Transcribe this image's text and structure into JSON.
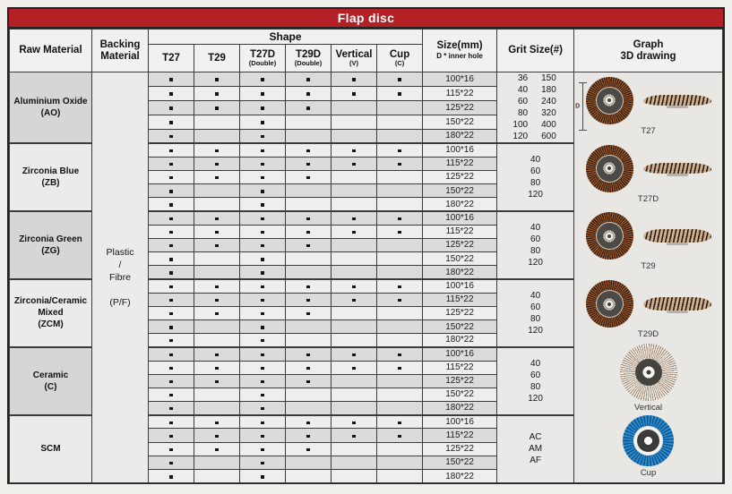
{
  "title": "Flap disc",
  "header": {
    "raw_material": "Raw Material",
    "backing_material": [
      "Backing",
      "Material"
    ],
    "shape": "Shape",
    "shape_columns": [
      {
        "label": "T27",
        "sub": ""
      },
      {
        "label": "T29",
        "sub": ""
      },
      {
        "label": "T27D",
        "sub": "(Double)"
      },
      {
        "label": "T29D",
        "sub": "(Double)"
      },
      {
        "label": "Vertical",
        "sub": "(V)"
      },
      {
        "label": "Cup",
        "sub": "(C)"
      }
    ],
    "size": [
      "Size(mm)",
      "D * inner hole"
    ],
    "grit": "Grit Size(#)",
    "graph": [
      "Graph",
      "3D drawing"
    ]
  },
  "backing_value": [
    "Plastic",
    "/",
    "Fibre",
    "",
    "(P/F)"
  ],
  "sections": [
    {
      "material": [
        "Aluminium Oxide",
        "(AO)"
      ],
      "rows": [
        {
          "size": "100*16",
          "dots": [
            1,
            1,
            1,
            1,
            1,
            1
          ]
        },
        {
          "size": "115*22",
          "dots": [
            1,
            1,
            1,
            1,
            1,
            1
          ]
        },
        {
          "size": "125*22",
          "dots": [
            1,
            1,
            1,
            1,
            0,
            0
          ]
        },
        {
          "size": "150*22",
          "dots": [
            1,
            0,
            1,
            0,
            0,
            0
          ]
        },
        {
          "size": "180*22",
          "dots": [
            1,
            0,
            1,
            0,
            0,
            0
          ]
        }
      ],
      "grit": {
        "columns": 2,
        "values": [
          [
            "36",
            "150"
          ],
          [
            "40",
            "180"
          ],
          [
            "60",
            "240"
          ],
          [
            "80",
            "320"
          ],
          [
            "100",
            "400"
          ],
          [
            "120",
            "600"
          ]
        ]
      }
    },
    {
      "material": [
        "Zirconia Blue",
        "(ZB)"
      ],
      "rows": [
        {
          "size": "100*16",
          "dots": [
            1,
            1,
            1,
            1,
            1,
            1
          ]
        },
        {
          "size": "115*22",
          "dots": [
            1,
            1,
            1,
            1,
            1,
            1
          ]
        },
        {
          "size": "125*22",
          "dots": [
            1,
            1,
            1,
            1,
            0,
            0
          ]
        },
        {
          "size": "150*22",
          "dots": [
            1,
            0,
            1,
            0,
            0,
            0
          ]
        },
        {
          "size": "180*22",
          "dots": [
            1,
            0,
            1,
            0,
            0,
            0
          ]
        }
      ],
      "grit": {
        "columns": 1,
        "values": [
          "40",
          "60",
          "80",
          "120"
        ]
      }
    },
    {
      "material": [
        "Zirconia Green",
        "(ZG)"
      ],
      "rows": [
        {
          "size": "100*16",
          "dots": [
            1,
            1,
            1,
            1,
            1,
            1
          ]
        },
        {
          "size": "115*22",
          "dots": [
            1,
            1,
            1,
            1,
            1,
            1
          ]
        },
        {
          "size": "125*22",
          "dots": [
            1,
            1,
            1,
            1,
            0,
            0
          ]
        },
        {
          "size": "150*22",
          "dots": [
            1,
            0,
            1,
            0,
            0,
            0
          ]
        },
        {
          "size": "180*22",
          "dots": [
            1,
            0,
            1,
            0,
            0,
            0
          ]
        }
      ],
      "grit": {
        "columns": 1,
        "values": [
          "40",
          "60",
          "80",
          "120"
        ]
      }
    },
    {
      "material": [
        "Zirconia/Ceramic",
        "Mixed",
        "(ZCM)"
      ],
      "rows": [
        {
          "size": "100*16",
          "dots": [
            1,
            1,
            1,
            1,
            1,
            1
          ]
        },
        {
          "size": "115*22",
          "dots": [
            1,
            1,
            1,
            1,
            1,
            1
          ]
        },
        {
          "size": "125*22",
          "dots": [
            1,
            1,
            1,
            1,
            0,
            0
          ]
        },
        {
          "size": "150*22",
          "dots": [
            1,
            0,
            1,
            0,
            0,
            0
          ]
        },
        {
          "size": "180*22",
          "dots": [
            1,
            0,
            1,
            0,
            0,
            0
          ]
        }
      ],
      "grit": {
        "columns": 1,
        "values": [
          "40",
          "60",
          "80",
          "120"
        ]
      }
    },
    {
      "material": [
        "Ceramic",
        "(C)"
      ],
      "rows": [
        {
          "size": "100*16",
          "dots": [
            1,
            1,
            1,
            1,
            1,
            1
          ]
        },
        {
          "size": "115*22",
          "dots": [
            1,
            1,
            1,
            1,
            1,
            1
          ]
        },
        {
          "size": "125*22",
          "dots": [
            1,
            1,
            1,
            1,
            0,
            0
          ]
        },
        {
          "size": "150*22",
          "dots": [
            1,
            0,
            1,
            0,
            0,
            0
          ]
        },
        {
          "size": "180*22",
          "dots": [
            1,
            0,
            1,
            0,
            0,
            0
          ]
        }
      ],
      "grit": {
        "columns": 1,
        "values": [
          "40",
          "60",
          "80",
          "120"
        ]
      }
    },
    {
      "material": [
        "SCM"
      ],
      "rows": [
        {
          "size": "100*16",
          "dots": [
            1,
            1,
            1,
            1,
            1,
            1
          ]
        },
        {
          "size": "115*22",
          "dots": [
            1,
            1,
            1,
            1,
            1,
            1
          ]
        },
        {
          "size": "125*22",
          "dots": [
            1,
            1,
            1,
            1,
            0,
            0
          ]
        },
        {
          "size": "150*22",
          "dots": [
            1,
            0,
            1,
            0,
            0,
            0
          ]
        },
        {
          "size": "180*22",
          "dots": [
            1,
            0,
            1,
            0,
            0,
            0
          ]
        }
      ],
      "grit": {
        "columns": 1,
        "values": [
          "AC",
          "AM",
          "AF"
        ]
      }
    }
  ],
  "graphs": [
    {
      "label": "T27",
      "type": "flat-disc",
      "views": [
        "front",
        "side"
      ],
      "dimension": "D"
    },
    {
      "label": "T27D",
      "type": "flat-disc",
      "views": [
        "front",
        "side"
      ]
    },
    {
      "label": "T29",
      "type": "conical-disc",
      "views": [
        "front",
        "side"
      ]
    },
    {
      "label": "T29D",
      "type": "conical-disc",
      "views": [
        "front",
        "side"
      ]
    },
    {
      "label": "Vertical",
      "type": "radial-burst",
      "views": [
        "front"
      ]
    },
    {
      "label": "Cup",
      "type": "cup-disc",
      "views": [
        "front"
      ]
    }
  ],
  "colors": {
    "accent_red": "#b32025",
    "flap_brown": "#a05e2e",
    "flap_dark": "#2f180a",
    "cup_blue": "#2b8fd3",
    "row_dark": "#dbdbdb",
    "row_light": "#eeeeee"
  }
}
